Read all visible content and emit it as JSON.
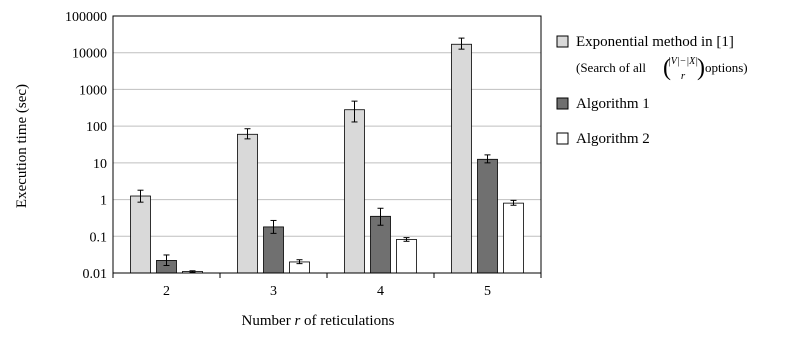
{
  "chart_data": {
    "type": "bar",
    "xlabel_pre": "Number ",
    "xlabel_var": "r",
    "xlabel_post": " of reticulations",
    "ylabel": "Execution time (sec)",
    "yscale": "log",
    "ylim": [
      0.01,
      100000
    ],
    "yticks": [
      "0.01",
      "0.1",
      "1",
      "10",
      "100",
      "1000",
      "10000",
      "100000"
    ],
    "grid": "horizontal",
    "legend_position": "right",
    "categories": [
      "2",
      "3",
      "4",
      "5"
    ],
    "series": [
      {
        "name": "Exponential method in [1]",
        "subtitle_pre": "(Search of all ",
        "subtitle_top": "|V|−|X|",
        "subtitle_bottom": "r",
        "subtitle_post": " options)",
        "color": "#d9d9d9",
        "values": [
          1.25,
          60,
          280,
          17000
        ],
        "err_low": [
          0.85,
          45,
          130,
          12500
        ],
        "err_high": [
          1.8,
          85,
          480,
          25000
        ]
      },
      {
        "name": "Algorithm 1",
        "color": "#707070",
        "values": [
          0.022,
          0.18,
          0.35,
          12.5
        ],
        "err_low": [
          0.016,
          0.12,
          0.2,
          10
        ],
        "err_high": [
          0.031,
          0.27,
          0.58,
          16.5
        ]
      },
      {
        "name": "Algorithm 2",
        "color": "#ffffff",
        "values": [
          0.011,
          0.02,
          0.082,
          0.8
        ],
        "err_low": [
          0.0105,
          0.018,
          0.073,
          0.7
        ],
        "err_high": [
          0.0115,
          0.023,
          0.092,
          0.95
        ]
      }
    ]
  }
}
